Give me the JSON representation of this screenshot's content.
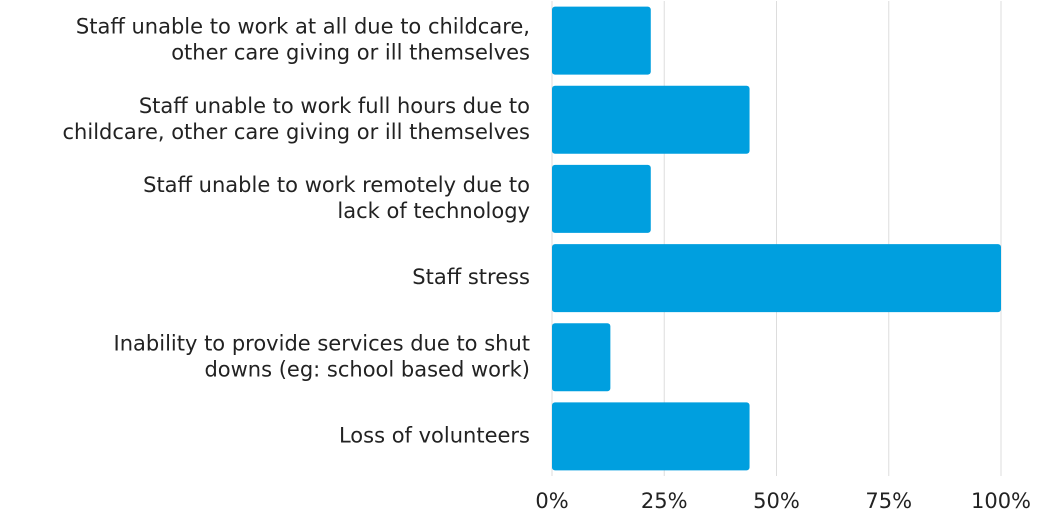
{
  "chart_data": {
    "type": "bar",
    "orientation": "horizontal",
    "categories": [
      [
        "Staff unable to work at all due to childcare,",
        "other care giving or ill themselves"
      ],
      [
        "Staff unable to work full hours due to",
        "childcare, other care giving or ill themselves"
      ],
      [
        "Staff unable to work remotely due to",
        "lack of technology"
      ],
      [
        "Staff stress"
      ],
      [
        "Inability to provide services due to shut",
        "downs (eg: school based work)"
      ],
      [
        "Loss of volunteers"
      ]
    ],
    "values": [
      22,
      44,
      22,
      100,
      13,
      44
    ],
    "color": "#009fdf",
    "xlim": [
      0,
      100
    ],
    "xticks": [
      {
        "value": 0,
        "label": "0%"
      },
      {
        "value": 25,
        "label": "25%"
      },
      {
        "value": 50,
        "label": "50%"
      },
      {
        "value": 75,
        "label": "75%"
      },
      {
        "value": 100,
        "label": "100%"
      }
    ],
    "grid": true
  }
}
